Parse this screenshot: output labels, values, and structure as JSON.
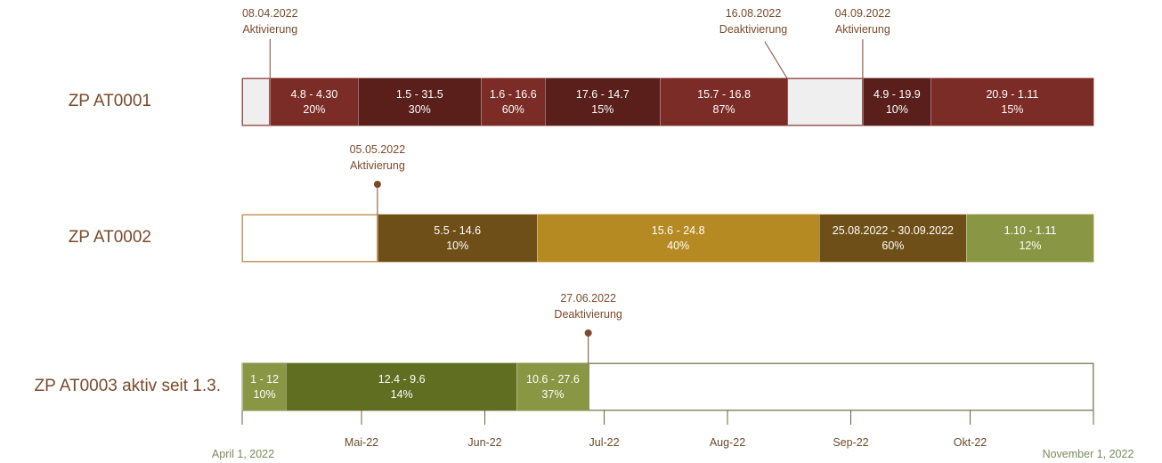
{
  "chart_data": {
    "type": "gantt",
    "x_start_label": "April 1, 2022",
    "x_end_label": "November 1, 2022",
    "ticks": [
      {
        "label": "Mai-22"
      },
      {
        "label": "Jun-22"
      },
      {
        "label": "Jul-22"
      },
      {
        "label": "Aug-22"
      },
      {
        "label": "Sep-22"
      },
      {
        "label": "Okt-22"
      }
    ],
    "rows": [
      {
        "label": "ZP AT0001",
        "segments": [
          {
            "start": "2022-04-01",
            "end": "2022-04-08",
            "color": "#efefef",
            "line1": "",
            "line2": ""
          },
          {
            "start": "2022-04-08",
            "end": "2022-04-30",
            "color": "#7b2c26",
            "line1": "4.8 - 4.30",
            "line2": "20%"
          },
          {
            "start": "2022-04-30",
            "end": "2022-05-31",
            "color": "#5a1f1b",
            "line1": "1.5 - 31.5",
            "line2": "30%"
          },
          {
            "start": "2022-05-31",
            "end": "2022-06-16",
            "color": "#7b2c26",
            "line1": "1.6 - 16.6",
            "line2": "60%"
          },
          {
            "start": "2022-06-16",
            "end": "2022-07-15",
            "color": "#5a1f1b",
            "line1": "17.6 - 14.7",
            "line2": "15%"
          },
          {
            "start": "2022-07-15",
            "end": "2022-08-16",
            "color": "#7b2c26",
            "line1": "15.7 - 16.8",
            "line2": "87%"
          },
          {
            "start": "2022-08-16",
            "end": "2022-09-04",
            "color": "#efefef",
            "line1": "",
            "line2": ""
          },
          {
            "start": "2022-09-04",
            "end": "2022-09-21",
            "color": "#5a1f1b",
            "line1": "4.9 - 19.9",
            "line2": "10%"
          },
          {
            "start": "2022-09-21",
            "end": "2022-11-01",
            "color": "#7b2c26",
            "line1": "20.9 - 1.11",
            "line2": "15%"
          }
        ]
      },
      {
        "label": "ZP AT0002",
        "segments": [
          {
            "start": "2022-04-01",
            "end": "2022-05-05",
            "color": "#ffffff",
            "line1": "",
            "line2": ""
          },
          {
            "start": "2022-05-05",
            "end": "2022-06-14",
            "color": "#6e4f17",
            "line1": "5.5 - 14.6",
            "line2": "10%"
          },
          {
            "start": "2022-06-14",
            "end": "2022-08-24",
            "color": "#b68a22",
            "line1": "15.6 - 24.8",
            "line2": "40%"
          },
          {
            "start": "2022-08-24",
            "end": "2022-09-30",
            "color": "#6e4f17",
            "line1": "25.08.2022 - 30.09.2022",
            "line2": "60%"
          },
          {
            "start": "2022-09-30",
            "end": "2022-11-01",
            "color": "#899745",
            "line1": "1.10 - 1.11",
            "line2": "12%"
          }
        ]
      },
      {
        "label": "ZP AT0003 aktiv seit 1.3.",
        "segments": [
          {
            "start": "2022-04-01",
            "end": "2022-04-12",
            "color": "#899745",
            "line1": "1 - 12",
            "line2": "10%"
          },
          {
            "start": "2022-04-12",
            "end": "2022-06-09",
            "color": "#5f6e20",
            "line1": "12.4 - 9.6",
            "line2": "14%"
          },
          {
            "start": "2022-06-09",
            "end": "2022-06-27",
            "color": "#899745",
            "line1": "10.6 - 27.6",
            "line2": "37%"
          },
          {
            "start": "2022-06-27",
            "end": "2022-11-01",
            "color": "#ffffff",
            "line1": "",
            "line2": ""
          }
        ]
      }
    ],
    "annotations": [
      {
        "row": 0,
        "date": "08.04.2022",
        "text": "Aktivierung",
        "marker": "line"
      },
      {
        "row": 0,
        "date": "16.08.2022",
        "text": "Deaktivierung",
        "marker": "diagonal"
      },
      {
        "row": 0,
        "date": "04.09.2022",
        "text": "Aktivierung",
        "marker": "line"
      },
      {
        "row": 1,
        "date": "05.05.2022",
        "text": "Aktivierung",
        "marker": "dot"
      },
      {
        "row": 2,
        "date": "27.06.2022",
        "text": "Deaktivierung",
        "marker": "dot"
      }
    ],
    "colors": {
      "label": "#7a4a2a",
      "annotation_line": "#7a4a2a"
    }
  }
}
